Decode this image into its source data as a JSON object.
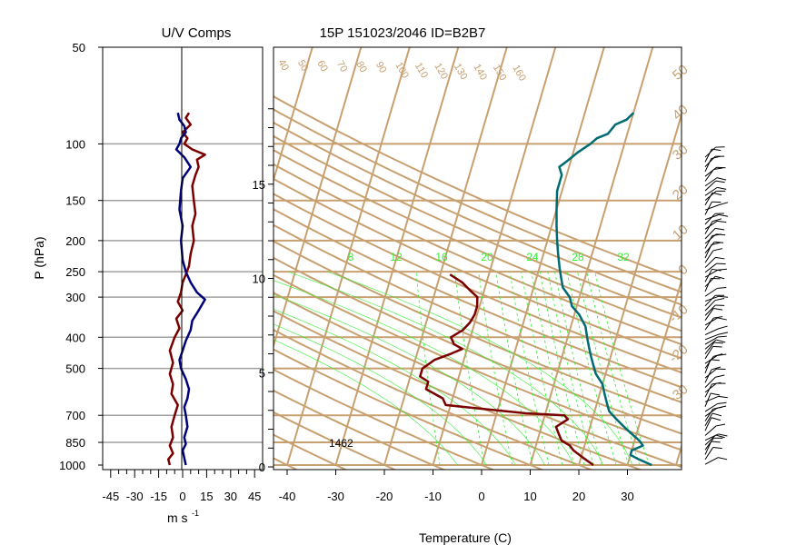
{
  "titles": {
    "left": "U/V Comps",
    "main": "15P 151023/2046 ID=B2B7"
  },
  "colors": {
    "background_lines": "#c8a070",
    "mixing_ratio": "#33ee33",
    "temperature": "#7a0000",
    "dewpoint": "#006b72",
    "u_component": "#7a0000",
    "v_component": "#00007a",
    "gridline": "#a0a0a0",
    "text": "#000000"
  },
  "chart_data": [
    {
      "type": "line",
      "panel": "U/V Comps",
      "title": "U/V Comps",
      "xlabel": "m s",
      "xlabel_superscript": "-1",
      "ylabel": "P (hPa)",
      "y_scale": "log",
      "y_reversed": true,
      "x_ticks": [
        -45,
        -30,
        -15,
        0,
        15,
        30,
        45
      ],
      "xlim": [
        -50,
        50
      ],
      "y_ticks": [
        50,
        100,
        150,
        200,
        250,
        300,
        400,
        500,
        700,
        850,
        1000
      ],
      "ylim": [
        50,
        1000
      ],
      "grid": "horizontal gray lines at pressure ticks",
      "series": [
        {
          "color_key": "u_component",
          "points": [
            [
              4,
              80
            ],
            [
              2,
              83
            ],
            [
              5,
              87
            ],
            [
              0,
              92
            ],
            [
              3,
              96
            ],
            [
              1,
              100
            ],
            [
              6,
              104
            ],
            [
              14,
              108
            ],
            [
              9,
              112
            ],
            [
              10,
              118
            ],
            [
              8,
              125
            ],
            [
              6,
              135
            ],
            [
              7,
              150
            ],
            [
              8,
              165
            ],
            [
              6,
              180
            ],
            [
              7,
              200
            ],
            [
              5,
              220
            ],
            [
              4,
              240
            ],
            [
              2,
              255
            ],
            [
              0,
              270
            ],
            [
              -1,
              290
            ],
            [
              -3,
              310
            ],
            [
              0,
              330
            ],
            [
              -4,
              350
            ],
            [
              -2,
              375
            ],
            [
              -5,
              400
            ],
            [
              -8,
              440
            ],
            [
              -6,
              480
            ],
            [
              -8,
              520
            ],
            [
              -6,
              560
            ],
            [
              -7,
              600
            ],
            [
              -3,
              650
            ],
            [
              -5,
              700
            ],
            [
              -7,
              760
            ],
            [
              -6,
              820
            ],
            [
              -8,
              870
            ],
            [
              -6,
              920
            ],
            [
              -9,
              960
            ],
            [
              -8,
              1000
            ]
          ]
        },
        {
          "color_key": "v_component",
          "points": [
            [
              -3,
              80
            ],
            [
              -2,
              84
            ],
            [
              1,
              88
            ],
            [
              2,
              92
            ],
            [
              -1,
              96
            ],
            [
              -2,
              100
            ],
            [
              -4,
              104
            ],
            [
              1,
              110
            ],
            [
              5,
              118
            ],
            [
              0,
              128
            ],
            [
              -1,
              140
            ],
            [
              -2,
              160
            ],
            [
              0,
              180
            ],
            [
              -1,
              200
            ],
            [
              0,
              230
            ],
            [
              2,
              250
            ],
            [
              5,
              270
            ],
            [
              9,
              290
            ],
            [
              14,
              305
            ],
            [
              10,
              330
            ],
            [
              6,
              355
            ],
            [
              5,
              380
            ],
            [
              2,
              410
            ],
            [
              0,
              440
            ],
            [
              -2,
              470
            ],
            [
              -1,
              500
            ],
            [
              2,
              540
            ],
            [
              4,
              580
            ],
            [
              3,
              620
            ],
            [
              1,
              660
            ],
            [
              2,
              700
            ],
            [
              3,
              760
            ],
            [
              1,
              820
            ],
            [
              2,
              860
            ],
            [
              0,
              900
            ],
            [
              1,
              950
            ],
            [
              2,
              1000
            ]
          ]
        }
      ]
    },
    {
      "type": "line",
      "panel": "Skew-T",
      "title": "15P 151023/2046 ID=B2B7",
      "xlabel": "Temperature (C)",
      "x_ticks": [
        -40,
        -30,
        -20,
        -10,
        0,
        10,
        20,
        30
      ],
      "xlim": [
        -40,
        40
      ],
      "ylim": [
        1000,
        50
      ],
      "y_scale": "log",
      "height_ticks_km": [
        0,
        5,
        10,
        15
      ],
      "isobars_hPa": [
        100,
        150,
        200,
        250,
        300,
        400,
        500,
        700,
        850,
        1000
      ],
      "annotation": "1462",
      "annotation_pressure_hPa": 850,
      "mixing_ratio_labels": [
        "8",
        "12",
        "16",
        "20",
        "24",
        "28",
        "32"
      ],
      "isotherm_labels": [
        "40",
        "50",
        "60",
        "70",
        "80",
        "90",
        "100",
        "110",
        "120",
        "130",
        "140",
        "150",
        "160"
      ],
      "adiabat_labels": [
        "50",
        "40",
        "30",
        "20",
        "10",
        "0",
        "-10",
        "-20",
        "-30"
      ],
      "wind_barbs": "present along right edge",
      "series": [
        {
          "color_key": "temperature",
          "points": [
            [
              -18,
              255
            ],
            [
              -15,
              270
            ],
            [
              -13,
              285
            ],
            [
              -11,
              300
            ],
            [
              -10.5,
              320
            ],
            [
              -10.5,
              340
            ],
            [
              -11,
              360
            ],
            [
              -12,
              380
            ],
            [
              -14,
              400
            ],
            [
              -13,
              420
            ],
            [
              -11,
              435
            ],
            [
              -13,
              450
            ],
            [
              -16,
              470
            ],
            [
              -18,
              500
            ],
            [
              -18,
              530
            ],
            [
              -16,
              550
            ],
            [
              -16,
              580
            ],
            [
              -12,
              620
            ],
            [
              -11,
              650
            ],
            [
              6,
              690
            ],
            [
              14,
              700
            ],
            [
              15,
              720
            ],
            [
              13,
              760
            ],
            [
              14,
              800
            ],
            [
              15,
              840
            ],
            [
              17,
              870
            ],
            [
              18,
              900
            ],
            [
              20,
              940
            ],
            [
              22,
              980
            ],
            [
              23,
              1000
            ]
          ]
        },
        {
          "color_key": "dewpoint",
          "points": [
            [
              10,
              80
            ],
            [
              9,
              84
            ],
            [
              7,
              87
            ],
            [
              6,
              93
            ],
            [
              4,
              96
            ],
            [
              3,
              100
            ],
            [
              1,
              106
            ],
            [
              0,
              110
            ],
            [
              -1,
              114
            ],
            [
              -2,
              118
            ],
            [
              -1,
              125
            ],
            [
              -1,
              140
            ],
            [
              0,
              160
            ],
            [
              1,
              180
            ],
            [
              2,
              200
            ],
            [
              3,
              220
            ],
            [
              4,
              240
            ],
            [
              5,
              260
            ],
            [
              6,
              280
            ],
            [
              8,
              300
            ],
            [
              9,
              320
            ],
            [
              11,
              340
            ],
            [
              13,
              370
            ],
            [
              14,
              400
            ],
            [
              15,
              430
            ],
            [
              16,
              460
            ],
            [
              17,
              490
            ],
            [
              18,
              520
            ],
            [
              20,
              560
            ],
            [
              21,
              600
            ],
            [
              22,
              640
            ],
            [
              23,
              680
            ],
            [
              25,
              720
            ],
            [
              27,
              760
            ],
            [
              29,
              800
            ],
            [
              31,
              840
            ],
            [
              32,
              870
            ],
            [
              30,
              900
            ],
            [
              30,
              930
            ],
            [
              32,
              960
            ],
            [
              35,
              1000
            ]
          ]
        }
      ]
    }
  ]
}
